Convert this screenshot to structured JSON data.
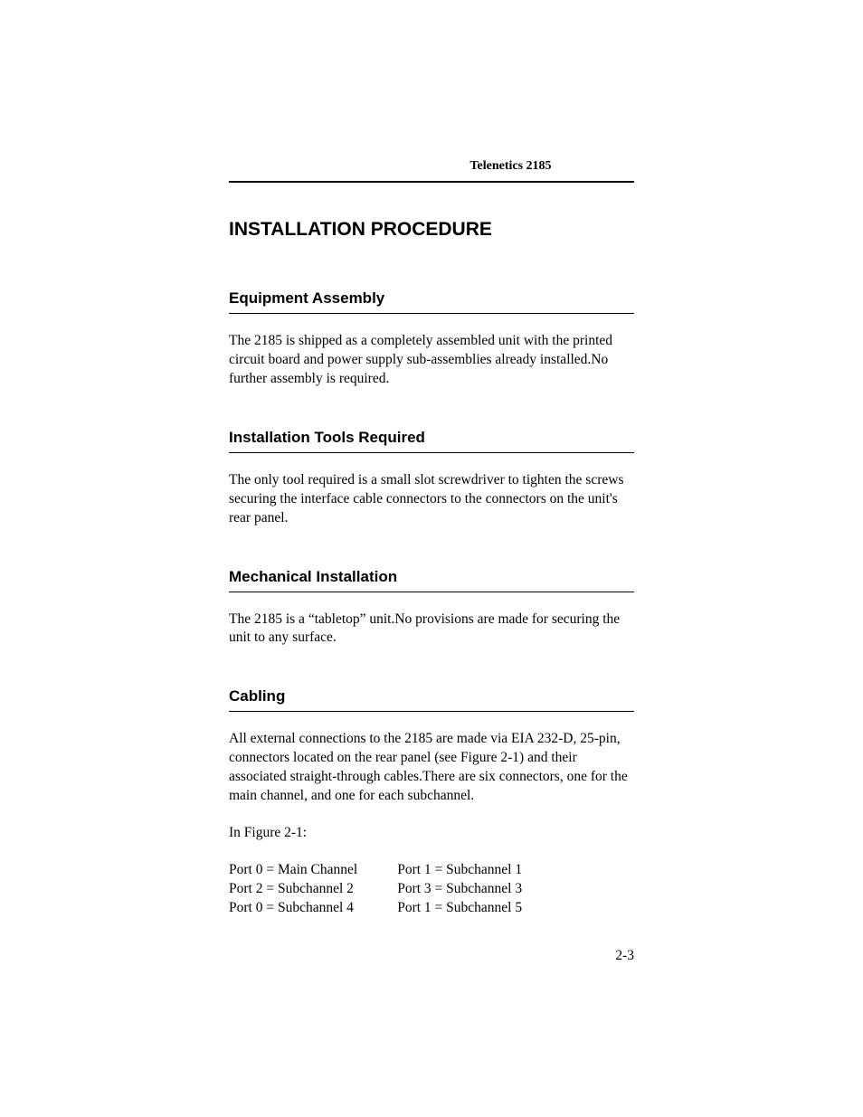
{
  "header": {
    "title": "Telenetics 2185"
  },
  "main_heading": "INSTALLATION PROCEDURE",
  "sections": {
    "equipment_assembly": {
      "heading": "Equipment Assembly",
      "body": "The 2185 is shipped as a completely assembled unit with the printed circuit board and power supply sub-assemblies already installed.No further assembly is required."
    },
    "installation_tools": {
      "heading": "Installation Tools Required",
      "body": "The only tool required is a small slot screwdriver to tighten the screws securing the interface cable connectors to the connectors on the unit's rear panel."
    },
    "mechanical_installation": {
      "heading": "Mechanical Installation",
      "body": "The 2185 is a “tabletop” unit.No provisions are made for securing the unit to any surface."
    },
    "cabling": {
      "heading": "Cabling",
      "body": "All external connections to the 2185 are made via EIA 232-D, 25-pin, connectors located on the rear panel (see Figure 2-1) and their associated straight-through cables.There are six connectors, one for the main channel, and one for each subchannel.",
      "figure_ref": "In Figure 2-1:",
      "ports": {
        "col1": [
          "Port 0 = Main Channel",
          "Port 2 = Subchannel 2",
          "Port 0 = Subchannel 4"
        ],
        "col2": [
          "Port 1 = Subchannel 1",
          "Port 3 = Subchannel 3",
          "Port 1 = Subchannel 5"
        ]
      }
    }
  },
  "page_number": "2-3"
}
